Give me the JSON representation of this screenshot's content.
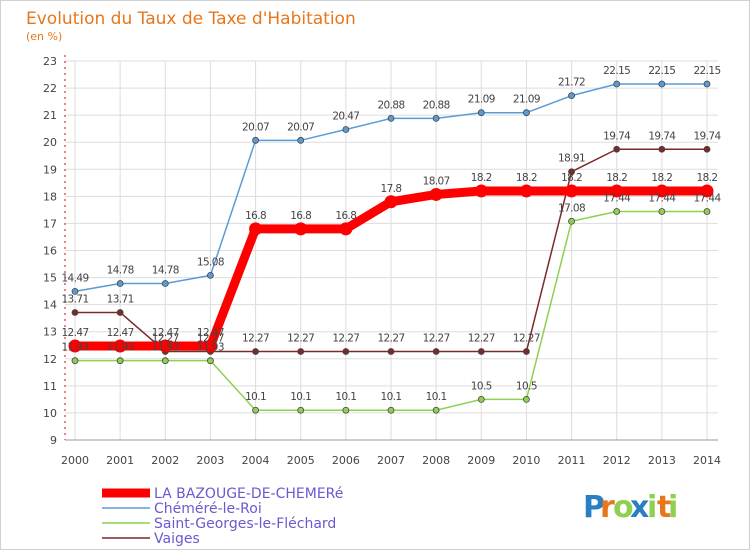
{
  "chart_data": {
    "type": "line",
    "title": "Evolution du Taux de Taxe d'Habitation",
    "ylabel": "(en %)",
    "xlabel": "",
    "ylim": [
      9,
      23
    ],
    "yticks": [
      9,
      10,
      11,
      12,
      13,
      14,
      15,
      16,
      17,
      18,
      19,
      20,
      21,
      22,
      23
    ],
    "categories": [
      "2000",
      "2001",
      "2002",
      "2003",
      "2004",
      "2005",
      "2006",
      "2007",
      "2008",
      "2009",
      "2010",
      "2011",
      "2012",
      "2013",
      "2014"
    ],
    "grid": true,
    "legend_position": "bottom-left",
    "series": [
      {
        "name": "Chéméré-le-Roi",
        "color": "#5b9bd5",
        "values": [
          14.49,
          14.78,
          14.78,
          15.08,
          20.07,
          20.07,
          20.47,
          20.88,
          20.88,
          21.09,
          21.09,
          21.72,
          22.15,
          22.15,
          22.15
        ],
        "labels": [
          "14.49",
          "14.78",
          "14.78",
          "15.08",
          "20.07",
          "20.07",
          "20.47",
          "20.88",
          "20.88",
          "21.09",
          "21.09",
          "21.72",
          "22.15",
          "22.15",
          "22.15"
        ]
      },
      {
        "name": "Saint-Georges-le-Fléchard",
        "color": "#8fd14f",
        "values": [
          11.93,
          11.93,
          11.93,
          11.93,
          10.1,
          10.1,
          10.1,
          10.1,
          10.1,
          10.5,
          10.5,
          17.08,
          17.44,
          17.44,
          17.44
        ],
        "labels": [
          "11.93",
          "11.93",
          "11.93",
          "11.93",
          "10.1",
          "10.1",
          "10.1",
          "10.1",
          "10.1",
          "10.5",
          "10.5",
          "17.08",
          "17.44",
          "17.44",
          "17.44"
        ]
      },
      {
        "name": "Vaiges",
        "color": "#7b2a2a",
        "values": [
          13.71,
          13.71,
          12.27,
          12.27,
          12.27,
          12.27,
          12.27,
          12.27,
          12.27,
          12.27,
          12.27,
          18.91,
          19.74,
          19.74,
          19.74
        ],
        "labels": [
          "13.71",
          "13.71",
          "12.27",
          "12.27",
          "12.27",
          "12.27",
          "12.27",
          "12.27",
          "12.27",
          "12.27",
          "12.27",
          "18.91",
          "19.74",
          "19.74",
          "19.74"
        ]
      },
      {
        "name": "LA BAZOUGE-DE-CHEMERé",
        "color": "#ff0000",
        "values": [
          12.47,
          12.47,
          12.47,
          12.47,
          16.8,
          16.8,
          16.8,
          17.8,
          18.07,
          18.2,
          18.2,
          18.2,
          18.2,
          18.2,
          18.2
        ],
        "labels": [
          "12.47",
          "12.47",
          "12.47",
          "12.47",
          "16.8",
          "16.8",
          "16.8",
          "17.8",
          "18.07",
          "18.2",
          "18.2",
          "18.2",
          "18.2",
          "18.2",
          "18.2"
        ],
        "bold": true
      }
    ],
    "legend_order": [
      3,
      0,
      1,
      2
    ]
  },
  "logo": {
    "letters": [
      "P",
      "r",
      "o",
      "x",
      "i",
      "t",
      "i"
    ],
    "colors": [
      "#2a7fc4",
      "#e8761a",
      "#8fd14f",
      "#2a7fc4",
      "#8fd14f",
      "#e8761a",
      "#8fd14f"
    ]
  }
}
